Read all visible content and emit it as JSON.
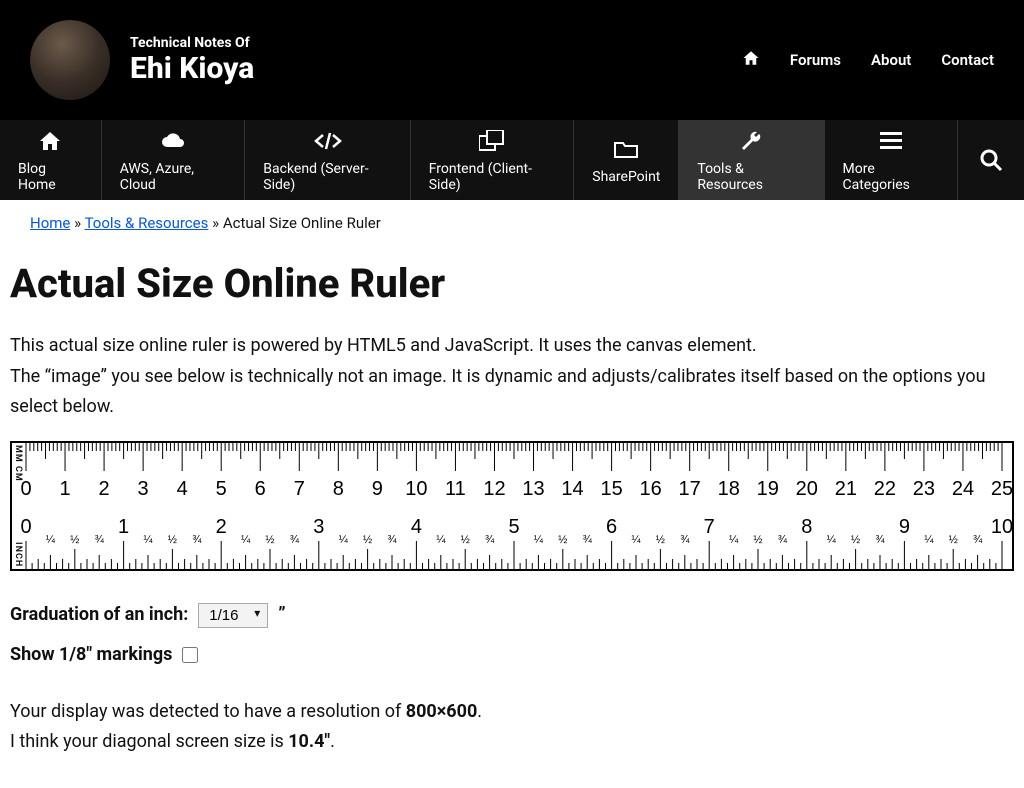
{
  "header": {
    "subtitle": "Technical Notes Of",
    "title": "Ehi Kioya",
    "nav": {
      "home_icon": "⌂",
      "forums": "Forums",
      "about": "About",
      "contact": "Contact"
    }
  },
  "categories": [
    {
      "icon": "home",
      "label": "Blog Home"
    },
    {
      "icon": "cloud",
      "label": "AWS, Azure, Cloud"
    },
    {
      "icon": "code",
      "label": "Backend (Server-Side)"
    },
    {
      "icon": "windows",
      "label": "Frontend (Client-Side)"
    },
    {
      "icon": "folder",
      "label": "SharePoint"
    },
    {
      "icon": "wrench",
      "label": "Tools & Resources",
      "active": true
    },
    {
      "icon": "bars",
      "label": "More Categories"
    }
  ],
  "breadcrumb": {
    "home": "Home",
    "sep": "»",
    "tools": "Tools & Resources",
    "current": "Actual Size Online Ruler"
  },
  "page": {
    "title": "Actual Size Online Ruler",
    "intro1": "This actual size online ruler is powered by HTML5 and JavaScript. It uses the canvas element.",
    "intro2": "The “image” you see below is technically not an image. It is dynamic and adjusts/calibrates itself based on the options you select below."
  },
  "ruler": {
    "label_top": "MM CM",
    "label_bottom": "INCH",
    "cm_max": 25,
    "inch_max": 10,
    "fractions": [
      "¼",
      "½",
      "¾"
    ],
    "tick_color": "#000",
    "number_font_size_cm": 20,
    "number_font_size_in": 20,
    "fraction_font_size": 11
  },
  "controls": {
    "grad_label": "Graduation of an inch:",
    "grad_value": "1/16",
    "grad_unit": "”",
    "show_eighth_label": "Show 1/8″ markings",
    "show_eighth_checked": false
  },
  "detect": {
    "line1_pre": "Your display was detected to have a resolution of ",
    "resolution": "800×600",
    "line1_post": ".",
    "line2_pre": "I think your diagonal screen size is ",
    "diagonal": "10.4\"",
    "line2_post": "."
  }
}
